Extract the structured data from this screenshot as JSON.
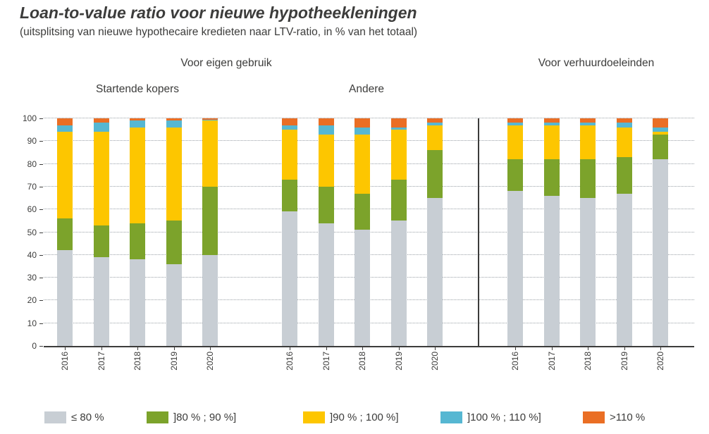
{
  "header": {
    "title": "Loan-to-value ratio voor nieuwe hypotheekleningen",
    "subtitle": "(uitsplitsing van nieuwe hypothecaire kredieten naar LTV-ratio, in % van het totaal)"
  },
  "chart_data": {
    "type": "bar",
    "stacked": true,
    "title": "Loan-to-value ratio voor nieuwe hypotheekleningen",
    "xlabel": "",
    "ylabel": "",
    "ylim": [
      0,
      100
    ],
    "yticks": [
      0,
      10,
      20,
      30,
      40,
      50,
      60,
      70,
      80,
      90,
      100
    ],
    "grid": "dotted-horizontal",
    "legend_position": "bottom",
    "panel_headers": [
      "Voor eigen gebruik",
      "Voor verhuurdoeleinden"
    ],
    "segments": [
      {
        "key": "le-80",
        "name": "≤ 80 %",
        "color": "#c8ced4"
      },
      {
        "key": "80-90",
        "name": "]80 % ; 90 %]",
        "color": "#7ca32b"
      },
      {
        "key": "90-100",
        "name": "]90 % ; 100 %]",
        "color": "#fdc600"
      },
      {
        "key": "100-110",
        "name": "]100 % ; 110 %]",
        "color": "#56b7d2"
      },
      {
        "key": "gt-110",
        "name": ">110 %",
        "color": "#ea6e24"
      }
    ],
    "groups": [
      {
        "key": "startende-kopers",
        "label": "Startende kopers",
        "years": [
          "2016",
          "2017",
          "2018",
          "2019",
          "2020"
        ],
        "series": [
          {
            "name": "≤ 80 %",
            "values": [
              42,
              39,
              38,
              36,
              40
            ]
          },
          {
            "name": "]80 % ; 90 %]",
            "values": [
              14,
              14,
              16,
              19,
              30
            ]
          },
          {
            "name": "]90 % ; 100 %]",
            "values": [
              38,
              41,
              42,
              41,
              29
            ]
          },
          {
            "name": "]100 % ; 110 %]",
            "values": [
              3,
              4,
              3,
              3,
              0.5
            ]
          },
          {
            "name": ">110 %",
            "values": [
              3,
              2,
              1,
              1,
              0.5
            ]
          }
        ]
      },
      {
        "key": "andere",
        "label": "Andere",
        "years": [
          "2016",
          "2017",
          "2018",
          "2019",
          "2020"
        ],
        "series": [
          {
            "name": "≤ 80 %",
            "values": [
              59,
              54,
              51,
              55,
              65
            ]
          },
          {
            "name": "]80 % ; 90 %]",
            "values": [
              14,
              16,
              16,
              18,
              21
            ]
          },
          {
            "name": "]90 % ; 100 %]",
            "values": [
              22,
              23,
              26,
              22,
              11
            ]
          },
          {
            "name": "]100 % ; 110 %]",
            "values": [
              2,
              4,
              3,
              1,
              1
            ]
          },
          {
            "name": ">110 %",
            "values": [
              3,
              3,
              4,
              4,
              2
            ]
          }
        ]
      },
      {
        "key": "verhuurdoeleinden",
        "label": "Voor verhuurdoeleinden",
        "years": [
          "2016",
          "2017",
          "2018",
          "2019",
          "2020"
        ],
        "series": [
          {
            "name": "≤ 80 %",
            "values": [
              68,
              66,
              65,
              67,
              82
            ]
          },
          {
            "name": "]80 % ; 90 %]",
            "values": [
              14,
              16,
              17,
              16,
              11
            ]
          },
          {
            "name": "]90 % ; 100 %]",
            "values": [
              15,
              15,
              15,
              13,
              1
            ]
          },
          {
            "name": "]100 % ; 110 %]",
            "values": [
              1,
              1,
              1,
              2,
              2
            ]
          },
          {
            "name": ">110 %",
            "values": [
              2,
              2,
              2,
              2,
              4
            ]
          }
        ]
      }
    ]
  },
  "legend": {
    "items": [
      {
        "label": "≤ 80 %",
        "color": "#c8ced4"
      },
      {
        "label": "]80 % ; 90 %]",
        "color": "#7ca32b"
      },
      {
        "label": "]90 % ; 100 %]",
        "color": "#fdc600"
      },
      {
        "label": "]100 % ; 110 %]",
        "color": "#56b7d2"
      },
      {
        "label": ">110 %",
        "color": "#ea6e24"
      }
    ]
  }
}
